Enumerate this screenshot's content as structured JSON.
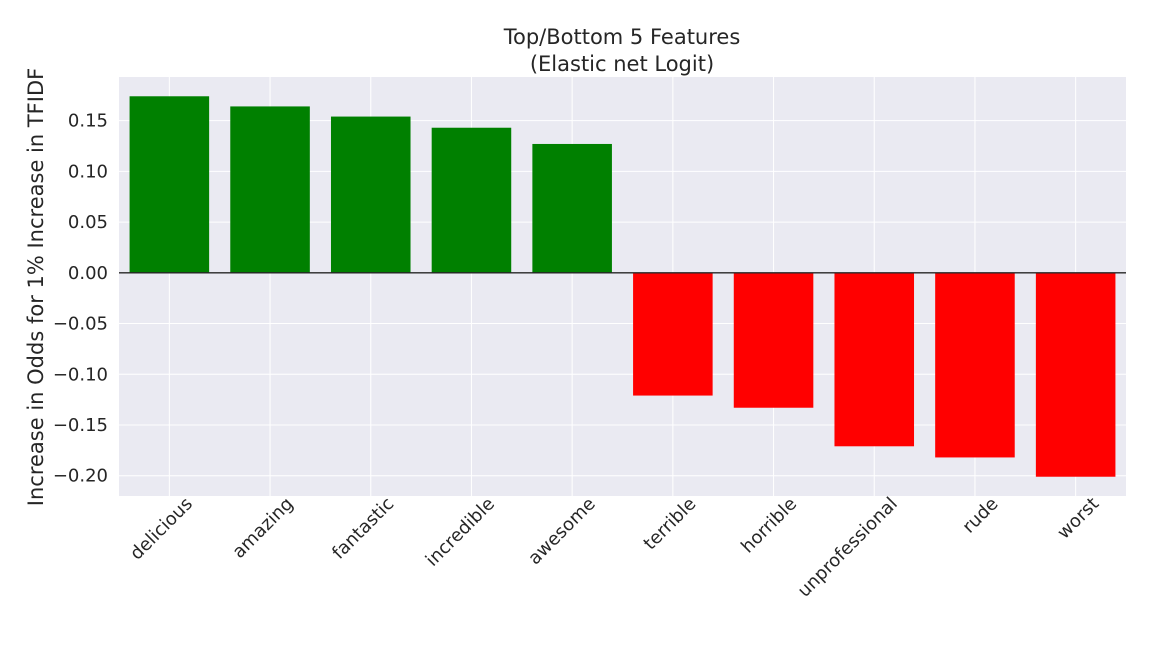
{
  "chart_data": {
    "type": "bar",
    "title": [
      "Top/Bottom 5 Features",
      "(Elastic net Logit)"
    ],
    "xlabel": "",
    "ylabel": "Increase in Odds for 1% Increase in TFIDF",
    "categories": [
      "delicious",
      "amazing",
      "fantastic",
      "incredible",
      "awesome",
      "terrible",
      "horrible",
      "unprofessional",
      "rude",
      "worst"
    ],
    "values": [
      0.174,
      0.164,
      0.154,
      0.143,
      0.127,
      -0.121,
      -0.133,
      -0.171,
      -0.182,
      -0.201
    ],
    "bar_colors": [
      "#008000",
      "#008000",
      "#008000",
      "#008000",
      "#008000",
      "#ff0000",
      "#ff0000",
      "#ff0000",
      "#ff0000",
      "#ff0000"
    ],
    "ylim": [
      -0.22,
      0.193
    ],
    "yticks": [
      0.15,
      0.1,
      0.05,
      0.0,
      -0.05,
      -0.1,
      -0.15,
      -0.2
    ],
    "ytick_labels": [
      "0.15",
      "0.10",
      "0.05",
      "0.00",
      "−0.05",
      "−0.10",
      "−0.15",
      "−0.20"
    ],
    "grid": true,
    "zero_line": true,
    "colors": {
      "plot_background": "#eaeaf2",
      "grid": "#ffffff",
      "text": "#262626",
      "zero_line": "#262626"
    }
  }
}
